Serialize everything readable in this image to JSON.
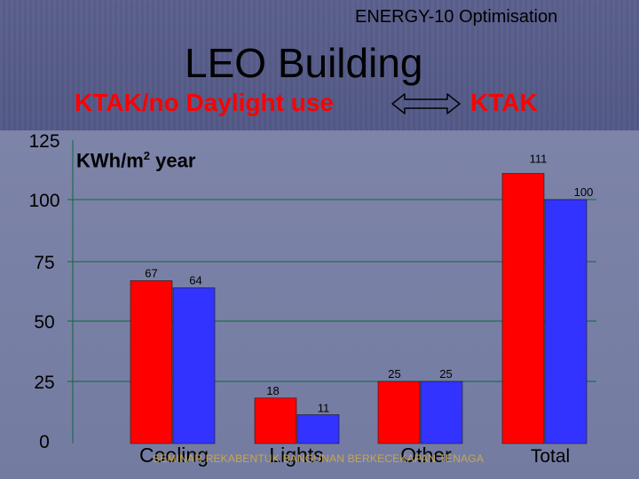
{
  "header": {
    "top_caption": "ENERGY-10  Optimisation",
    "title": "LEO Building",
    "legend_left": "KTAK/no Daylight use",
    "legend_right": "KTAK"
  },
  "footer": {
    "text": "SEMINAR REKABENTUK BANGUNAN BERKECEKAPAN TENAGA"
  },
  "chart_data": {
    "type": "bar",
    "categories": [
      "Cooling",
      "Lights",
      "Other",
      "Total"
    ],
    "series": [
      {
        "values": [
          67,
          18,
          25,
          111
        ],
        "color": "#ff0000"
      },
      {
        "values": [
          64,
          11,
          25,
          100
        ],
        "color": "#3333ff"
      }
    ],
    "data_labels": [
      [
        "67",
        "18",
        "25",
        "111"
      ],
      [
        "64",
        "11",
        "25",
        "100"
      ]
    ],
    "ylabel_main": "KWh/m",
    "ylabel_sup": "2",
    "ylabel_tail": " year",
    "yticks": [
      0,
      25,
      50,
      75,
      100,
      125
    ],
    "ytick_labels": [
      "0",
      "25",
      "50",
      "75",
      "100",
      "125"
    ],
    "ylim": [
      0,
      125
    ],
    "grid": true,
    "gridline_color": "#0a6a3a"
  }
}
